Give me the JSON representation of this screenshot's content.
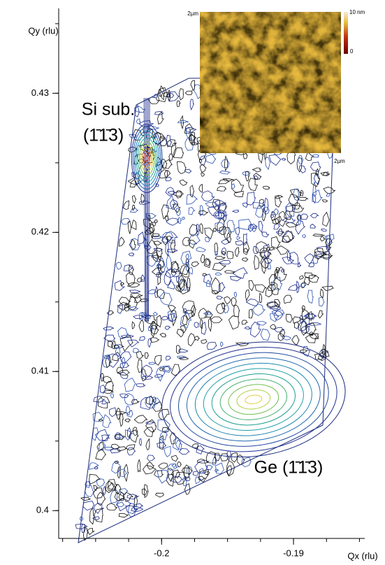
{
  "chart_data": {
    "type": "contour",
    "xlabel": "Qx (rlu)",
    "ylabel": "Qy (rlu)",
    "xlim": [
      -0.2078,
      -0.1846
    ],
    "ylim": [
      0.398,
      0.4361
    ],
    "xticks": [
      -0.2,
      -0.19
    ],
    "xminor": [
      -0.2075,
      -0.205,
      -0.2025,
      -0.2,
      -0.1975,
      -0.195,
      -0.1925,
      -0.19,
      -0.1875,
      -0.185
    ],
    "yticks": [
      0.4,
      0.41,
      0.42,
      0.43
    ],
    "yminor": [
      0.4,
      0.405,
      0.41,
      0.415,
      0.42,
      0.425,
      0.43,
      0.435
    ],
    "peaks": {
      "x": [
        -0.20112,
        -0.19303
      ],
      "y": [
        0.42532,
        0.40799
      ]
    },
    "annotations": [
      "Si sub.",
      "(1̄1̄3)",
      "Ge (1̄1̄3)"
    ],
    "inset": {
      "y_label": "2µm",
      "origin": "0",
      "x_label": "2µm",
      "scale_max": "10 nm",
      "scale_min": "0"
    }
  }
}
